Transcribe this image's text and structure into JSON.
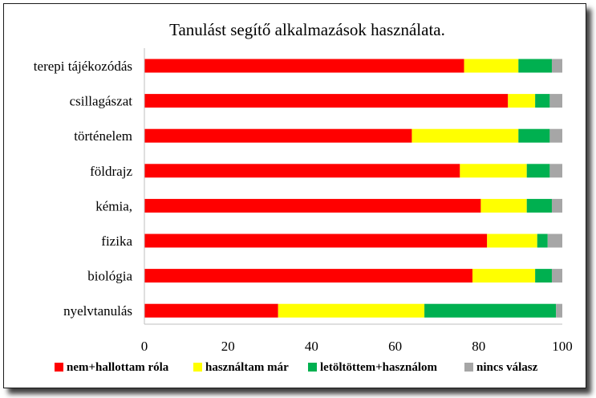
{
  "chart_data": {
    "type": "bar",
    "orientation": "horizontal",
    "stacked": true,
    "title": "Tanulást segítő alkalmazások használata.",
    "xlabel": "",
    "ylabel": "",
    "xlim": [
      0,
      100
    ],
    "xticks": [
      "0",
      "20",
      "40",
      "60",
      "80",
      "100"
    ],
    "categories": [
      "terepi tájékozódás",
      "csillagászat",
      "történelem",
      "földrajz",
      "kémia,",
      "fizika",
      "biológia",
      "nyelvtanulás"
    ],
    "series": [
      {
        "name": "nem+hallottam róla",
        "color": "#ff0000",
        "values": [
          76.5,
          87,
          64,
          75.5,
          80.5,
          82,
          78.5,
          32
        ]
      },
      {
        "name": "használtam már",
        "color": "#ffff00",
        "values": [
          13,
          6.5,
          25.5,
          16,
          11,
          12,
          15,
          35
        ]
      },
      {
        "name": "letöltöttem+használom",
        "color": "#00b050",
        "values": [
          8,
          3.5,
          7.5,
          5.5,
          6,
          2.5,
          4,
          31.5
        ]
      },
      {
        "name": "nincs válasz",
        "color": "#a6a6a6",
        "values": [
          2.5,
          3,
          3,
          3,
          2.5,
          3.5,
          2.5,
          1.5
        ]
      }
    ],
    "grid": false,
    "legend_position": "bottom"
  }
}
